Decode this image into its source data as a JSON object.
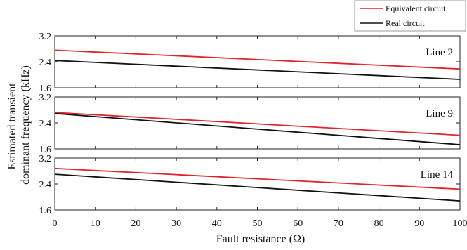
{
  "chart_data": {
    "type": "line",
    "xlabel": "Fault resistance (Ω)",
    "ylabel": [
      "Estimated transient",
      "dominant frequency (kHz)"
    ],
    "xlim": [
      0,
      100
    ],
    "ylim": [
      1.6,
      3.2
    ],
    "x_ticks": [
      0,
      10,
      20,
      30,
      40,
      50,
      60,
      70,
      80,
      90,
      100
    ],
    "y_ticks": [
      "1.6",
      "2.4",
      "3.2"
    ],
    "grid": false,
    "legend": {
      "placement": "top-right",
      "entries": [
        {
          "name": "Equivalent circuit",
          "color": "#e0242c"
        },
        {
          "name": "Real circuit",
          "color": "#111111"
        }
      ]
    },
    "panels": [
      {
        "label": "Line 2",
        "series": [
          {
            "name": "Equivalent circuit",
            "x": [
              0,
              100
            ],
            "y": [
              2.76,
              2.18
            ]
          },
          {
            "name": "Real circuit",
            "x": [
              0,
              100
            ],
            "y": [
              2.44,
              1.86
            ]
          }
        ]
      },
      {
        "label": "Line 9",
        "series": [
          {
            "name": "Equivalent circuit",
            "x": [
              0,
              100
            ],
            "y": [
              2.72,
              2.02
            ]
          },
          {
            "name": "Real circuit",
            "x": [
              0,
              100
            ],
            "y": [
              2.69,
              1.73
            ]
          }
        ]
      },
      {
        "label": "Line 14",
        "series": [
          {
            "name": "Equivalent circuit",
            "x": [
              0,
              100
            ],
            "y": [
              2.88,
              2.24
            ]
          },
          {
            "name": "Real circuit",
            "x": [
              0,
              100
            ],
            "y": [
              2.7,
              1.88
            ]
          }
        ]
      }
    ]
  }
}
